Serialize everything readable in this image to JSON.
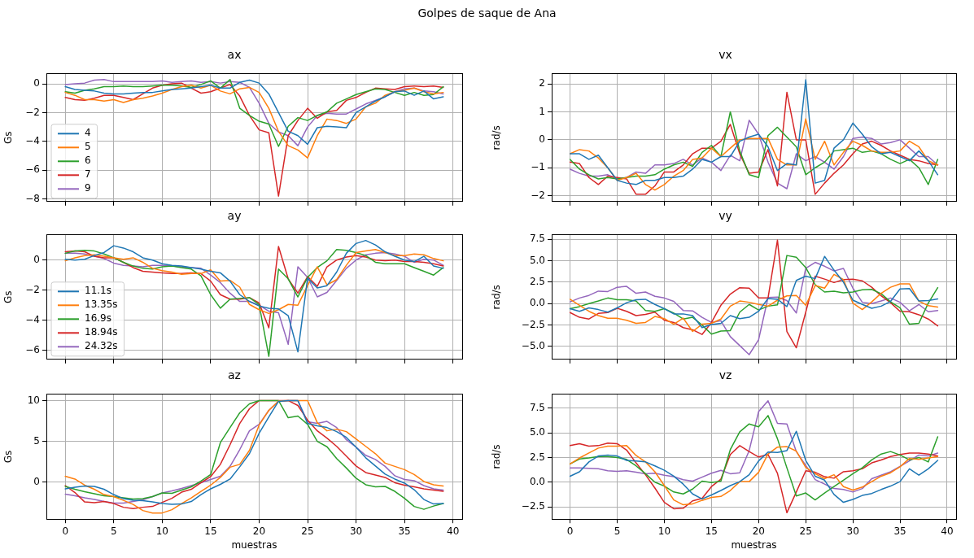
{
  "chart_data": [
    {
      "type": "line",
      "title": "Golpes de saque de Ana",
      "subtitle": "ax",
      "ylabel": "Gs",
      "x": [
        0,
        1,
        2,
        3,
        4,
        5,
        6,
        7,
        8,
        9,
        10,
        11,
        12,
        13,
        14,
        15,
        16,
        17,
        18,
        19,
        20,
        21,
        22,
        23,
        24,
        25,
        26,
        27,
        28,
        29,
        30,
        31,
        32,
        33,
        34,
        35,
        36,
        37,
        38,
        39
      ],
      "xlim": [
        -1.95,
        40.95
      ],
      "xticks": [
        0,
        5,
        10,
        15,
        20,
        25,
        30,
        35,
        40
      ],
      "ylim": [
        -8.18,
        0.69
      ],
      "yticks": [
        -8,
        -6,
        -4,
        -2,
        0
      ],
      "grid": true,
      "legend": "bottom left",
      "tick_labels": "y",
      "series": [
        {
          "name": "4",
          "color": "#1f77b4",
          "values": [
            -0.2,
            -0.4,
            -0.45,
            -0.5,
            -0.65,
            -0.7,
            -0.7,
            -0.65,
            -0.6,
            -0.6,
            -0.5,
            -0.4,
            -0.35,
            -0.3,
            -0.2,
            -0.1,
            -0.3,
            -0.3,
            0.1,
            0.25,
            0.05,
            -0.7,
            -2.0,
            -3.3,
            -3.6,
            -4.2,
            -3.05,
            -2.95,
            -3.0,
            -3.05,
            -2.0,
            -1.6,
            -1.2,
            -0.9,
            -0.55,
            -0.5,
            -0.8,
            -0.5,
            -1.05,
            -0.9
          ]
        },
        {
          "name": "5",
          "color": "#ff7f0e",
          "values": [
            -0.6,
            -0.8,
            -1.1,
            -1.1,
            -1.2,
            -1.1,
            -1.3,
            -1.1,
            -1.0,
            -0.85,
            -0.65,
            -0.4,
            -0.2,
            -0.1,
            -0.3,
            -0.1,
            -0.5,
            -0.7,
            -0.35,
            -0.25,
            -0.6,
            -1.7,
            -3.3,
            -4.3,
            -4.6,
            -5.15,
            -3.6,
            -2.45,
            -2.55,
            -2.75,
            -2.45,
            -1.6,
            -1.35,
            -0.8,
            -0.55,
            -0.45,
            -0.3,
            -0.55,
            -0.7,
            -0.6
          ]
        },
        {
          "name": "6",
          "color": "#2ca02c",
          "values": [
            -0.55,
            -0.65,
            -0.45,
            -0.35,
            -0.2,
            -0.2,
            -0.15,
            -0.2,
            -0.2,
            -0.15,
            -0.1,
            -0.1,
            -0.15,
            -0.25,
            -0.05,
            0.2,
            -0.3,
            0.3,
            -1.7,
            -2.2,
            -2.6,
            -2.8,
            -4.35,
            -2.95,
            -2.35,
            -2.55,
            -2.2,
            -1.95,
            -1.35,
            -1.05,
            -0.75,
            -0.55,
            -0.35,
            -0.4,
            -0.6,
            -0.8,
            -0.6,
            -0.8,
            -0.75,
            -0.2
          ]
        },
        {
          "name": "7",
          "color": "#d62728",
          "values": [
            -0.95,
            -1.1,
            -1.15,
            -1.0,
            -0.8,
            -0.8,
            -0.95,
            -1.1,
            -0.7,
            -0.3,
            -0.1,
            0,
            0.05,
            -0.3,
            -0.65,
            -0.55,
            -0.3,
            -0.05,
            -0.85,
            -2.2,
            -3.2,
            -3.4,
            -7.8,
            -3.6,
            -2.55,
            -1.7,
            -2.4,
            -1.95,
            -1.85,
            -1.15,
            -0.95,
            -0.6,
            -0.3,
            -0.35,
            -0.4,
            -0.2,
            -0.15,
            -0.2,
            -0.15,
            -0.25
          ]
        },
        {
          "name": "9",
          "color": "#9467bd",
          "values": [
            -0.05,
            0,
            0.05,
            0.25,
            0.3,
            0.15,
            0.15,
            0.15,
            0.15,
            0.15,
            0.2,
            0.1,
            0.15,
            0.2,
            0.1,
            0.15,
            0.05,
            0.15,
            0.1,
            -0.25,
            -1.35,
            -2.75,
            -3.35,
            -3.6,
            -4.3,
            -3.0,
            -2.2,
            -2.05,
            -2.1,
            -2.1,
            -1.75,
            -1.4,
            -1.15,
            -0.9,
            -0.55,
            -0.35,
            -0.3,
            -0.5,
            -0.55,
            -0.7
          ]
        }
      ]
    },
    {
      "type": "line",
      "title": "vx",
      "ylabel": "rad/s",
      "x": [
        0,
        1,
        2,
        3,
        4,
        5,
        6,
        7,
        8,
        9,
        10,
        11,
        12,
        13,
        14,
        15,
        16,
        17,
        18,
        19,
        20,
        21,
        22,
        23,
        24,
        25,
        26,
        27,
        28,
        29,
        30,
        31,
        32,
        33,
        34,
        35,
        36,
        37,
        38,
        39
      ],
      "xlim": [
        -1.95,
        40.95
      ],
      "xticks": [
        0,
        5,
        10,
        15,
        20,
        25,
        30,
        35,
        40
      ],
      "ylim": [
        -2.21,
        2.36
      ],
      "yticks": [
        -2,
        -1,
        0,
        1,
        2
      ],
      "grid": true,
      "tick_labels": "y",
      "series": [
        {
          "color": "#1f77b4",
          "values": [
            -0.5,
            -0.5,
            -0.7,
            -0.55,
            -1.0,
            -1.45,
            -1.55,
            -1.6,
            -1.45,
            -1.45,
            -1.35,
            -1.35,
            -1.3,
            -1.05,
            -0.7,
            -0.8,
            -0.6,
            -0.6,
            -0.05,
            0.1,
            0.2,
            -0.25,
            -1.1,
            -0.85,
            -0.9,
            2.15,
            -1.55,
            -1.45,
            -0.3,
            0,
            0.6,
            0.2,
            -0.25,
            -0.5,
            -0.45,
            -0.6,
            -0.75,
            -0.4,
            -0.75,
            -1.25
          ]
        },
        {
          "color": "#ff7f0e",
          "values": [
            -0.5,
            -0.35,
            -0.4,
            -0.65,
            -1.0,
            -1.45,
            -1.35,
            -1.2,
            -1.6,
            -1.8,
            -1.6,
            -1.3,
            -1.1,
            -0.7,
            -0.65,
            -0.3,
            -0.6,
            -0.3,
            0,
            0.05,
            0.05,
            0.05,
            -0.7,
            -0.9,
            -0.9,
            0.75,
            -0.7,
            -0.05,
            -0.9,
            -0.45,
            -0.05,
            -0.2,
            -0.4,
            -0.45,
            -0.45,
            -0.4,
            -0.05,
            -0.25,
            -0.75,
            -0.9
          ]
        },
        {
          "color": "#2ca02c",
          "values": [
            -0.7,
            -1.05,
            -1.25,
            -1.4,
            -1.35,
            -1.4,
            -1.35,
            -1.3,
            -1.3,
            -1.25,
            -1.05,
            -0.9,
            -0.8,
            -0.95,
            -0.45,
            -0.2,
            -0.6,
            1.0,
            -0.4,
            -1.25,
            -1.35,
            0.15,
            0.45,
            0.1,
            -0.25,
            -1.25,
            -1.0,
            -0.8,
            -0.4,
            -0.35,
            -0.3,
            -0.45,
            -0.4,
            -0.5,
            -0.7,
            -0.85,
            -0.7,
            -1.0,
            -1.6,
            -0.7
          ]
        },
        {
          "color": "#d62728",
          "values": [
            -0.8,
            -0.85,
            -1.35,
            -1.6,
            -1.3,
            -1.35,
            -1.4,
            -1.95,
            -1.95,
            -1.65,
            -1.15,
            -1.15,
            -0.9,
            -0.5,
            -0.3,
            -0.3,
            -0.05,
            0.55,
            -0.5,
            -1.2,
            -1.15,
            -0.35,
            -1.65,
            1.7,
            0,
            0,
            -1.95,
            -1.55,
            -1.2,
            -0.9,
            -0.5,
            -0.15,
            -0.05,
            -0.2,
            -0.4,
            -0.55,
            -0.7,
            -0.75,
            -0.85,
            -0.9
          ]
        },
        {
          "color": "#9467bd",
          "values": [
            -1.05,
            -1.2,
            -1.3,
            -1.3,
            -1.25,
            -1.4,
            -1.35,
            -1.15,
            -1.2,
            -0.9,
            -0.9,
            -0.85,
            -0.7,
            -0.9,
            -0.65,
            -0.8,
            -1.1,
            -0.55,
            -0.75,
            0.7,
            0.2,
            -0.8,
            -1.55,
            -1.75,
            -0.5,
            -0.75,
            -0.6,
            -0.8,
            -1.05,
            -0.6,
            0.05,
            0.1,
            0.05,
            -0.15,
            -0.1,
            0,
            -0.3,
            -0.6,
            -0.6,
            -0.9
          ]
        }
      ]
    },
    {
      "type": "line",
      "title": "ay",
      "ylabel": "Gs",
      "x": [
        0,
        1,
        2,
        3,
        4,
        5,
        6,
        7,
        8,
        9,
        10,
        11,
        12,
        13,
        14,
        15,
        16,
        17,
        18,
        19,
        20,
        21,
        22,
        23,
        24,
        25,
        26,
        27,
        28,
        29,
        30,
        31,
        32,
        33,
        34,
        35,
        36,
        37,
        38,
        39
      ],
      "xlim": [
        -1.95,
        40.95
      ],
      "xticks": [
        0,
        5,
        10,
        15,
        20,
        25,
        30,
        35,
        40
      ],
      "ylim": [
        -6.6,
        1.67
      ],
      "yticks": [
        -6,
        -4,
        -2,
        0
      ],
      "grid": true,
      "legend": "bottom left",
      "tick_labels": "y",
      "series": [
        {
          "name": "11.1s",
          "color": "#1f77b4",
          "values": [
            0.05,
            0,
            0.05,
            0.3,
            0.5,
            0.95,
            0.8,
            0.55,
            0.15,
            0,
            -0.25,
            -0.35,
            -0.4,
            -0.5,
            -0.6,
            -0.75,
            -0.85,
            -1.4,
            -2.3,
            -2.75,
            -3.05,
            -3.2,
            -3.25,
            -3.7,
            -6.1,
            -1.2,
            -1.85,
            -1.7,
            -0.8,
            0.45,
            1.1,
            1.3,
            1.0,
            0.55,
            0.25,
            0,
            -0.1,
            0.25,
            -0.4,
            -0.55
          ]
        },
        {
          "name": "13.35s",
          "color": "#ff7f0e",
          "values": [
            -0.05,
            0.15,
            0.3,
            0.35,
            0.25,
            0.15,
            0.05,
            0.15,
            -0.15,
            -0.55,
            -0.7,
            -0.8,
            -0.95,
            -0.9,
            -0.9,
            -0.65,
            -1.4,
            -1.35,
            -1.8,
            -2.95,
            -3.3,
            -3.55,
            -3.3,
            -2.95,
            -3.0,
            -1.7,
            -0.45,
            -1.65,
            -1.3,
            -0.35,
            0.5,
            0.6,
            0.7,
            0.5,
            0.3,
            0.3,
            0.4,
            0.35,
            0.1,
            -0.05
          ]
        },
        {
          "name": "16.9s",
          "color": "#2ca02c",
          "values": [
            0.45,
            0.6,
            0.65,
            0.6,
            0.4,
            0.15,
            -0.15,
            -0.4,
            -0.55,
            -0.6,
            -0.45,
            -0.4,
            -0.5,
            -0.6,
            -1.05,
            -2.3,
            -3.2,
            -2.6,
            -2.55,
            -2.5,
            -2.95,
            -6.4,
            -0.6,
            -1.25,
            -2.45,
            -1.15,
            -0.5,
            -0.05,
            0.7,
            0.65,
            0.5,
            0.3,
            -0.15,
            -0.25,
            -0.25,
            -0.25,
            -0.5,
            -0.75,
            -1.0,
            -0.5
          ]
        },
        {
          "name": "18.94s",
          "color": "#d62728",
          "values": [
            0.55,
            0.6,
            0.55,
            0.25,
            0.15,
            0.15,
            -0.15,
            -0.5,
            -0.75,
            -0.8,
            -0.85,
            -0.9,
            -0.9,
            -0.85,
            -0.9,
            -1.4,
            -2.3,
            -2.6,
            -2.6,
            -2.5,
            -2.85,
            -4.5,
            0.9,
            -1.25,
            -2.2,
            -1.1,
            -1.75,
            -0.45,
            0,
            0.2,
            0.3,
            0.2,
            0,
            -0.05,
            0,
            -0.1,
            -0.1,
            -0.15,
            -0.25,
            -0.4
          ]
        },
        {
          "name": "24.32s",
          "color": "#9467bd",
          "values": [
            0.45,
            0.45,
            0.4,
            0.25,
            0.1,
            -0.2,
            -0.35,
            -0.4,
            -0.45,
            -0.35,
            -0.35,
            -0.4,
            -0.45,
            -0.5,
            -0.55,
            -1.0,
            -1.5,
            -2.2,
            -2.75,
            -2.75,
            -3.0,
            -3.4,
            -3.5,
            -5.6,
            -0.45,
            -1.15,
            -2.45,
            -2.15,
            -1.35,
            -0.55,
            0,
            0.35,
            0.45,
            0.5,
            0.4,
            0.25,
            -0.15,
            0.05,
            0,
            -0.35
          ]
        }
      ]
    },
    {
      "type": "line",
      "title": "vy",
      "ylabel": "rad/s",
      "x": [
        0,
        1,
        2,
        3,
        4,
        5,
        6,
        7,
        8,
        9,
        10,
        11,
        12,
        13,
        14,
        15,
        16,
        17,
        18,
        19,
        20,
        21,
        22,
        23,
        24,
        25,
        26,
        27,
        28,
        29,
        30,
        31,
        32,
        33,
        34,
        35,
        36,
        37,
        38,
        39
      ],
      "xlim": [
        -1.95,
        40.95
      ],
      "xticks": [
        0,
        5,
        10,
        15,
        20,
        25,
        30,
        35,
        40
      ],
      "ylim": [
        -6.5,
        8.0
      ],
      "yticks": [
        {
          "value": -5,
          "label": "−5.0"
        },
        {
          "value": -2.5,
          "label": "−2.5"
        },
        {
          "value": 0,
          "label": "0.0"
        },
        {
          "value": 2.5,
          "label": "2.5"
        },
        {
          "value": 5,
          "label": "5.0"
        },
        {
          "value": 7.5,
          "label": "7.5"
        }
      ],
      "grid": true,
      "tick_labels": "y",
      "series": [
        {
          "color": "#1f77b4",
          "values": [
            -0.6,
            -0.9,
            -0.5,
            -0.7,
            -1.0,
            -0.5,
            0.1,
            0.45,
            0.5,
            -0.1,
            -0.6,
            -1.2,
            -1.2,
            -1.4,
            -2.8,
            -2.45,
            -2.3,
            -1.4,
            -1.75,
            -1.6,
            -0.9,
            0.6,
            0.5,
            -0.35,
            2.7,
            3.2,
            2.9,
            5.5,
            3.9,
            2.5,
            0.4,
            -0.1,
            -0.55,
            -0.3,
            0.25,
            1.7,
            1.75,
            0.3,
            0.35,
            0.55
          ]
        },
        {
          "color": "#ff7f0e",
          "values": [
            0.5,
            -0.2,
            -0.9,
            -1.4,
            -1.7,
            -1.7,
            -1.95,
            -2.3,
            -2.2,
            -1.5,
            -1.75,
            -2.4,
            -1.7,
            -3.25,
            -2.4,
            -2.3,
            -1.8,
            -0.3,
            0.3,
            0.15,
            -0.1,
            -0.3,
            0.4,
            0.9,
            0.95,
            -0.2,
            2.1,
            1.8,
            3.4,
            2.8,
            0.05,
            -0.7,
            0.2,
            1.2,
            1.9,
            2.3,
            2.3,
            0.3,
            -0.25,
            -0.4
          ]
        },
        {
          "color": "#2ca02c",
          "values": [
            -0.6,
            -0.35,
            0,
            0.3,
            0.65,
            0.45,
            0.45,
            0.3,
            -0.8,
            -0.9,
            -0.6,
            -1.1,
            -1.8,
            -1.6,
            -2.5,
            -3.55,
            -3.2,
            -3.15,
            -1.0,
            -0.1,
            -0.75,
            -0.3,
            -0.15,
            5.6,
            5.4,
            4.2,
            2.2,
            1.35,
            1.45,
            1.25,
            1.35,
            1.6,
            1.65,
            1.15,
            0.2,
            -0.5,
            -2.4,
            -2.3,
            0.05,
            1.85
          ]
        },
        {
          "color": "#d62728",
          "values": [
            -1.05,
            -1.6,
            -1.8,
            -1.15,
            -1.05,
            -0.55,
            -0.9,
            -1.4,
            -1.25,
            -1.0,
            -1.95,
            -2.2,
            -2.8,
            -3.05,
            -3.6,
            -2.2,
            -0.2,
            1.1,
            1.85,
            1.8,
            0.65,
            0.65,
            7.4,
            -3.25,
            -5.15,
            -1.0,
            3.2,
            2.85,
            2.45,
            2.8,
            2.85,
            2.65,
            1.9,
            0.9,
            0.1,
            -0.9,
            -0.95,
            -1.3,
            -1.8,
            -2.6
          ]
        },
        {
          "color": "#9467bd",
          "values": [
            0.2,
            0.65,
            0.95,
            1.45,
            1.4,
            1.9,
            2.0,
            1.2,
            1.35,
            0.85,
            0.65,
            0.25,
            -0.8,
            -0.85,
            -1.6,
            -2.2,
            -2.0,
            -3.85,
            -4.9,
            -5.95,
            -4.2,
            0.7,
            0.75,
            0.35,
            -1.1,
            4.1,
            4.8,
            4.35,
            3.8,
            4.1,
            1.8,
            0.15,
            0,
            0.3,
            0.65,
            0.15,
            -0.85,
            -0.1,
            -0.95,
            -0.8
          ]
        }
      ]
    },
    {
      "type": "line",
      "title": "az",
      "xlabel": "muestras",
      "ylabel": "Gs",
      "x": [
        0,
        1,
        2,
        3,
        4,
        5,
        6,
        7,
        8,
        9,
        10,
        11,
        12,
        13,
        14,
        15,
        16,
        17,
        18,
        19,
        20,
        21,
        22,
        23,
        24,
        25,
        26,
        27,
        28,
        29,
        30,
        31,
        32,
        33,
        34,
        35,
        36,
        37,
        38,
        39
      ],
      "xlim": [
        -1.95,
        40.95
      ],
      "xticks": [
        0,
        5,
        10,
        15,
        20,
        25,
        30,
        35,
        40
      ],
      "ylim": [
        -4.5,
        10.76
      ],
      "yticks": [
        0,
        5,
        10
      ],
      "grid": true,
      "series": [
        {
          "color": "#1f77b4",
          "values": [
            -0.8,
            -0.6,
            -0.45,
            -0.5,
            -0.85,
            -1.5,
            -2.0,
            -2.2,
            -2.25,
            -2.4,
            -2.6,
            -2.7,
            -2.65,
            -2.35,
            -1.5,
            -0.8,
            -0.25,
            0.4,
            1.9,
            3.5,
            6.0,
            8.0,
            9.9,
            10,
            10,
            7.2,
            6.9,
            6.7,
            6.2,
            5.5,
            4.3,
            3.0,
            2.0,
            1.0,
            0.4,
            -0.1,
            -0.9,
            -2.1,
            -2.65,
            -2.6
          ]
        },
        {
          "color": "#ff7f0e",
          "values": [
            0.75,
            0.4,
            -0.35,
            -0.85,
            -1.5,
            -1.75,
            -2.2,
            -2.7,
            -3.45,
            -3.75,
            -3.75,
            -3.35,
            -2.6,
            -1.9,
            -1.1,
            -0.35,
            0.6,
            1.85,
            2.2,
            3.9,
            7.0,
            8.8,
            9.95,
            10,
            10,
            10,
            7.3,
            6.3,
            6.5,
            6.2,
            5.3,
            4.4,
            3.5,
            2.35,
            1.95,
            1.55,
            0.95,
            0.1,
            -0.3,
            -0.45
          ]
        },
        {
          "color": "#2ca02c",
          "values": [
            -0.5,
            -0.85,
            -1.15,
            -1.4,
            -1.65,
            -1.75,
            -1.9,
            -2.05,
            -2.0,
            -1.75,
            -1.3,
            -1.35,
            -0.95,
            -0.55,
            0.15,
            0.95,
            4.85,
            6.7,
            8.5,
            9.6,
            10,
            10,
            10,
            7.9,
            8.1,
            7.1,
            5.0,
            4.35,
            2.9,
            1.75,
            0.5,
            -0.3,
            -0.55,
            -0.5,
            -1.1,
            -1.95,
            -2.95,
            -3.3,
            -2.9,
            -2.6
          ]
        },
        {
          "color": "#d62728",
          "values": [
            -0.4,
            -1.25,
            -2.4,
            -2.5,
            -2.35,
            -2.6,
            -3.05,
            -3.2,
            -3.05,
            -2.95,
            -2.45,
            -1.95,
            -1.2,
            -0.85,
            -0.05,
            0.7,
            2.2,
            4.6,
            7.2,
            9.0,
            10,
            10,
            10,
            10,
            9.4,
            7.6,
            6.3,
            5.4,
            4.4,
            3.2,
            2.0,
            1.2,
            0.9,
            0.6,
            -0.05,
            -0.35,
            -0.55,
            -0.8,
            -0.95,
            -1.1
          ]
        },
        {
          "color": "#9467bd",
          "values": [
            -1.45,
            -1.65,
            -1.9,
            -2.1,
            -2.35,
            -2.55,
            -2.55,
            -2.35,
            -2.15,
            -1.75,
            -1.3,
            -1.05,
            -0.75,
            -0.4,
            -0.05,
            0.35,
            0.75,
            1.95,
            4.0,
            6.3,
            7.1,
            8.8,
            9.9,
            10,
            10,
            7.4,
            7.2,
            7.45,
            6.7,
            5.2,
            4.3,
            3.3,
            2.8,
            1.95,
            0.8,
            0.35,
            0.2,
            -0.4,
            -0.8,
            -0.95
          ]
        }
      ]
    },
    {
      "type": "line",
      "title": "vz",
      "xlabel": "muestras",
      "ylabel": "rad/s",
      "x": [
        0,
        1,
        2,
        3,
        4,
        5,
        6,
        7,
        8,
        9,
        10,
        11,
        12,
        13,
        14,
        15,
        16,
        17,
        18,
        19,
        20,
        21,
        22,
        23,
        24,
        25,
        26,
        27,
        28,
        29,
        30,
        31,
        32,
        33,
        34,
        35,
        36,
        37,
        38,
        39
      ],
      "xlim": [
        -1.95,
        40.95
      ],
      "xticks": [
        0,
        5,
        10,
        15,
        20,
        25,
        30,
        35,
        40
      ],
      "ylim": [
        -3.75,
        8.9
      ],
      "yticks": [
        {
          "value": -2.5,
          "label": "−2.5"
        },
        {
          "value": 0,
          "label": "0.0"
        },
        {
          "value": 2.5,
          "label": "2.5"
        },
        {
          "value": 5,
          "label": "5.0"
        },
        {
          "value": 7.5,
          "label": "7.5"
        }
      ],
      "grid": true,
      "series": [
        {
          "color": "#1f77b4",
          "values": [
            0.6,
            1.05,
            2.05,
            2.65,
            2.75,
            2.65,
            2.2,
            2.15,
            2.05,
            1.65,
            1.2,
            0.6,
            -0.2,
            -1.2,
            -1.7,
            -1.3,
            -0.85,
            -0.35,
            0.05,
            0.75,
            2.15,
            3.05,
            3.0,
            3.2,
            5.15,
            2.2,
            0.6,
            0.2,
            -1.25,
            -2.05,
            -1.75,
            -1.35,
            -1.15,
            -0.75,
            -0.4,
            0.05,
            1.35,
            0.7,
            1.35,
            2.2
          ]
        },
        {
          "color": "#ff7f0e",
          "values": [
            1.85,
            2.45,
            2.95,
            3.45,
            3.65,
            3.65,
            3.7,
            2.7,
            2.05,
            1.05,
            -0.35,
            -1.8,
            -2.3,
            -2.2,
            -1.85,
            -1.55,
            -1.45,
            -0.85,
            0.05,
            0.05,
            1.0,
            2.85,
            3.55,
            3.6,
            3.15,
            1.5,
            0.85,
            0.35,
            0.75,
            -0.45,
            -0.8,
            -0.5,
            0.05,
            0.6,
            0.95,
            1.55,
            2.4,
            2.3,
            2.45,
            2.6
          ]
        },
        {
          "color": "#2ca02c",
          "values": [
            1.85,
            2.35,
            2.45,
            2.6,
            2.6,
            2.5,
            2.3,
            1.65,
            0.85,
            0,
            -0.4,
            -1.0,
            -1.2,
            -0.7,
            0.1,
            -0.05,
            0.1,
            3.3,
            5.1,
            5.9,
            5.6,
            6.75,
            4.4,
            1.45,
            -1.4,
            -1.1,
            -1.8,
            -1.1,
            -0.45,
            0.2,
            0.85,
            1.45,
            2.25,
            2.85,
            3.1,
            2.75,
            2.25,
            2.5,
            2.05,
            4.6
          ]
        },
        {
          "color": "#d62728",
          "values": [
            3.7,
            3.9,
            3.65,
            3.7,
            3.95,
            3.9,
            3.25,
            1.95,
            0.75,
            -0.6,
            -2.05,
            -2.7,
            -2.65,
            -1.9,
            -1.65,
            -0.45,
            0.3,
            2.8,
            3.7,
            3.1,
            2.55,
            2.8,
            0.9,
            -3.1,
            -1.0,
            1.15,
            1.0,
            0.55,
            0.4,
            1.05,
            1.15,
            1.35,
            1.95,
            2.25,
            2.6,
            2.8,
            2.95,
            2.95,
            2.85,
            2.65
          ]
        },
        {
          "color": "#9467bd",
          "values": [
            1.45,
            1.45,
            1.4,
            1.35,
            1.15,
            1.1,
            1.15,
            1.0,
            0.85,
            0.9,
            0.7,
            0.55,
            0.25,
            0.1,
            0.5,
            0.9,
            1.2,
            0.85,
            0.95,
            3.2,
            7.15,
            8.25,
            5.95,
            5.9,
            3.1,
            1.7,
            0.25,
            -0.2,
            -0.65,
            -0.75,
            -1.0,
            -0.65,
            0.35,
            0.7,
            1.05,
            1.6,
            2.15,
            2.75,
            2.65,
            2.95
          ]
        }
      ]
    }
  ]
}
